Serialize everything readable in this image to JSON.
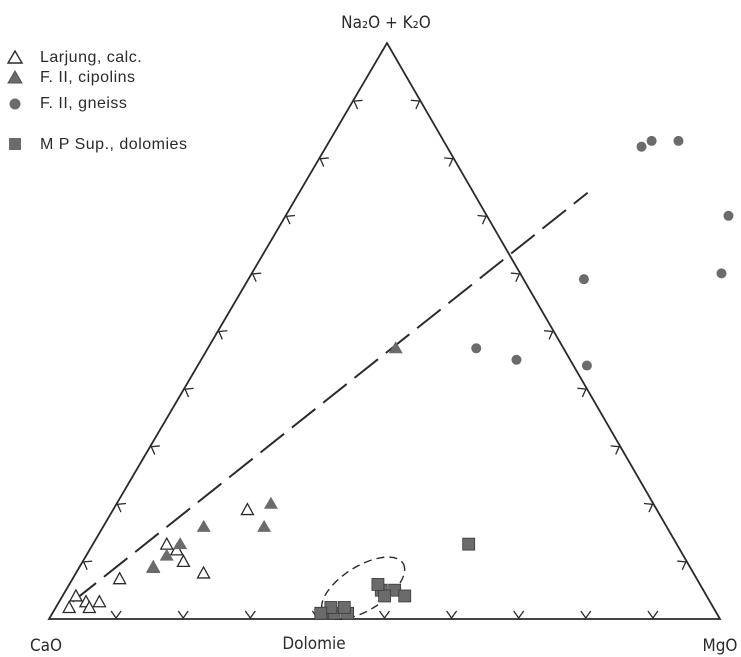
{
  "chart_data": {
    "type": "scatter",
    "subtype": "ternary",
    "vertices": {
      "apex": "Na₂O + K₂O",
      "left": "CaO",
      "right": "MgO"
    },
    "base_annotation": "Dolomie",
    "ticks_per_side": 10,
    "colors": {
      "ink": "#2a2a2a",
      "marker": "#6b6b6b"
    },
    "legend_position": "top-left",
    "legend": [
      {
        "symbol": "open-triangle",
        "label": "Larjung, calc."
      },
      {
        "symbol": "filled-triangle",
        "label": "F. II, cipolins"
      },
      {
        "symbol": "filled-circle",
        "label": "F. II, gneiss"
      },
      {
        "symbol": "filled-square",
        "label": "M P Sup., dolomies"
      }
    ],
    "trend_line": {
      "style": "dashed",
      "from": {
        "alk": 0.03,
        "mgo": 0.02
      },
      "to": {
        "alk": 0.74,
        "mgo": 0.43
      }
    },
    "dolomie_field": {
      "style": "dashed",
      "center": {
        "alk": 0.05,
        "mgo": 0.44
      }
    },
    "series": [
      {
        "label": "Larjung, calc.",
        "symbol": "open-triangle",
        "points": [
          {
            "alk": 0.04,
            "mgo": 0.02
          },
          {
            "alk": 0.02,
            "mgo": 0.02
          },
          {
            "alk": 0.03,
            "mgo": 0.04
          },
          {
            "alk": 0.03,
            "mgo": 0.06
          },
          {
            "alk": 0.02,
            "mgo": 0.05
          },
          {
            "alk": 0.07,
            "mgo": 0.07
          },
          {
            "alk": 0.09,
            "mgo": 0.11
          },
          {
            "alk": 0.12,
            "mgo": 0.13
          },
          {
            "alk": 0.13,
            "mgo": 0.11
          },
          {
            "alk": 0.1,
            "mgo": 0.15
          },
          {
            "alk": 0.19,
            "mgo": 0.2
          },
          {
            "alk": 0.08,
            "mgo": 0.19
          }
        ]
      },
      {
        "label": "F. II, cipolins",
        "symbol": "filled-triangle",
        "points": [
          {
            "alk": 0.09,
            "mgo": 0.11
          },
          {
            "alk": 0.11,
            "mgo": 0.12
          },
          {
            "alk": 0.13,
            "mgo": 0.13
          },
          {
            "alk": 0.16,
            "mgo": 0.15
          },
          {
            "alk": 0.2,
            "mgo": 0.23
          },
          {
            "alk": 0.16,
            "mgo": 0.24
          },
          {
            "alk": 0.47,
            "mgo": 0.28
          }
        ]
      },
      {
        "label": "F. II, gneiss",
        "symbol": "filled-circle",
        "points": [
          {
            "alk": 0.82,
            "mgo": 0.47
          },
          {
            "alk": 0.83,
            "mgo": 0.48
          },
          {
            "alk": 0.83,
            "mgo": 0.52
          },
          {
            "alk": 0.7,
            "mgo": 0.66
          },
          {
            "alk": 0.7,
            "mgo": 0.69
          },
          {
            "alk": 0.6,
            "mgo": 0.7
          },
          {
            "alk": 0.59,
            "mgo": 0.5
          },
          {
            "alk": 0.47,
            "mgo": 0.4
          },
          {
            "alk": 0.45,
            "mgo": 0.47
          },
          {
            "alk": 0.44,
            "mgo": 0.58
          }
        ]
      },
      {
        "label": "M P Sup., dolomies",
        "symbol": "filled-square",
        "points": [
          {
            "alk": 0.13,
            "mgo": 0.56
          },
          {
            "alk": 0.05,
            "mgo": 0.49
          },
          {
            "alk": 0.04,
            "mgo": 0.51
          },
          {
            "alk": 0.05,
            "mgo": 0.47
          },
          {
            "alk": 0.04,
            "mgo": 0.48
          },
          {
            "alk": 0.06,
            "mgo": 0.46
          },
          {
            "alk": 0.01,
            "mgo": 0.44
          },
          {
            "alk": 0.01,
            "mgo": 0.41
          },
          {
            "alk": 0.01,
            "mgo": 0.42
          },
          {
            "alk": 0.02,
            "mgo": 0.41
          },
          {
            "alk": 0.02,
            "mgo": 0.43
          },
          {
            "alk": 0.01,
            "mgo": 0.4
          }
        ]
      }
    ]
  }
}
